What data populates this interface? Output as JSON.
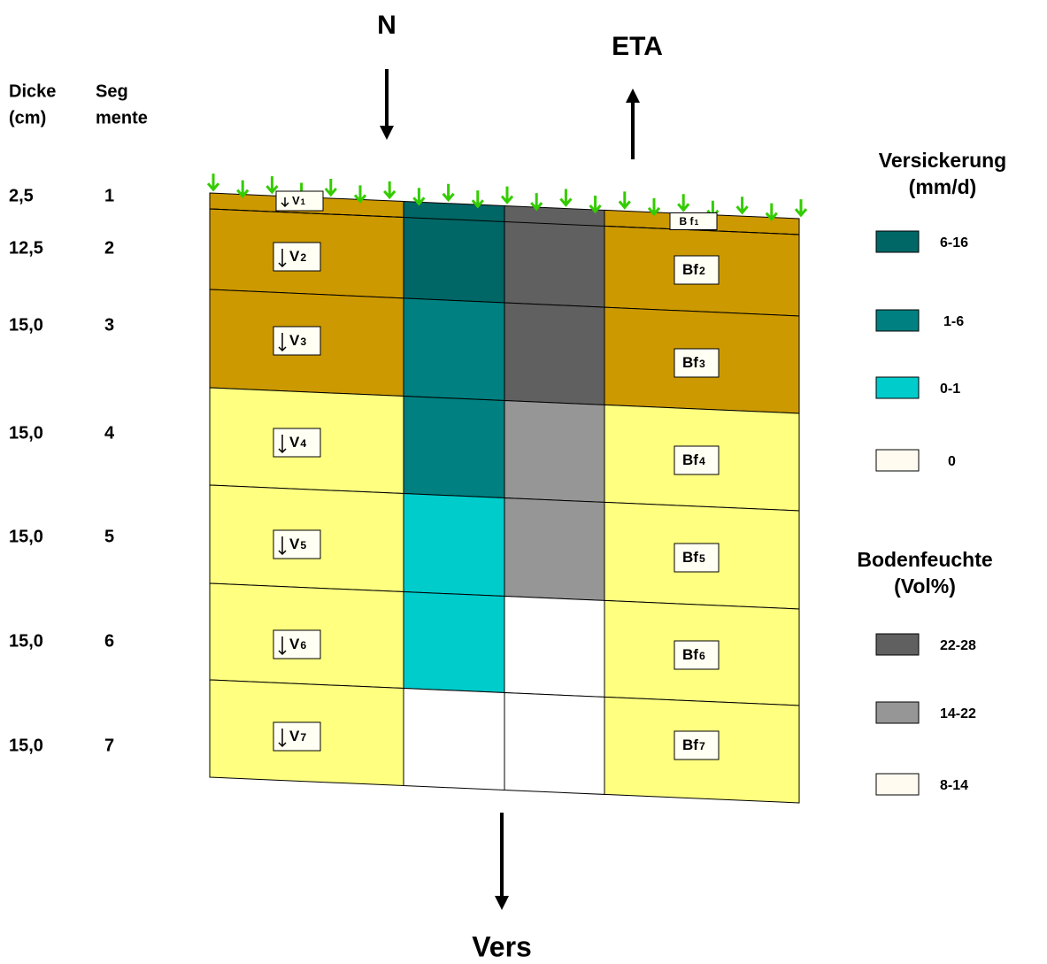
{
  "flows": {
    "top": "N",
    "evap": "ETA",
    "bottom": "Vers"
  },
  "header": {
    "thickness": [
      "Dicke",
      "(cm)"
    ],
    "segments": [
      "Seg",
      "mente"
    ]
  },
  "layers": [
    {
      "thickness": "2,5",
      "segment": "1",
      "v": [
        "V",
        "1"
      ],
      "bf": [
        "B f",
        "1"
      ]
    },
    {
      "thickness": "12,5",
      "segment": "2",
      "v": [
        "V",
        "2"
      ],
      "bf": [
        "Bf",
        "2"
      ]
    },
    {
      "thickness": "15,0",
      "segment": "3",
      "v": [
        "V",
        "3"
      ],
      "bf": [
        "Bf",
        "3"
      ]
    },
    {
      "thickness": "15,0",
      "segment": "4",
      "v": [
        "V",
        "4"
      ],
      "bf": [
        "Bf",
        "4"
      ]
    },
    {
      "thickness": "15,0",
      "segment": "5",
      "v": [
        "V",
        "5"
      ],
      "bf": [
        "Bf",
        "5"
      ]
    },
    {
      "thickness": "15,0",
      "segment": "6",
      "v": [
        "V",
        "6"
      ],
      "bf": [
        "Bf",
        "6"
      ]
    },
    {
      "thickness": "15,0",
      "segment": "7",
      "v": [
        "V",
        "7"
      ],
      "bf": [
        "Bf",
        "7"
      ]
    }
  ],
  "legends": [
    {
      "title": [
        "Versickerung",
        "(mm/d)"
      ],
      "entries": [
        "6-16",
        "1-6",
        "0-1",
        "0"
      ]
    },
    {
      "title": [
        "Bodenfeuchte",
        "(Vol%)"
      ],
      "entries": [
        "22-28",
        "14-22",
        "8-14"
      ]
    }
  ]
}
